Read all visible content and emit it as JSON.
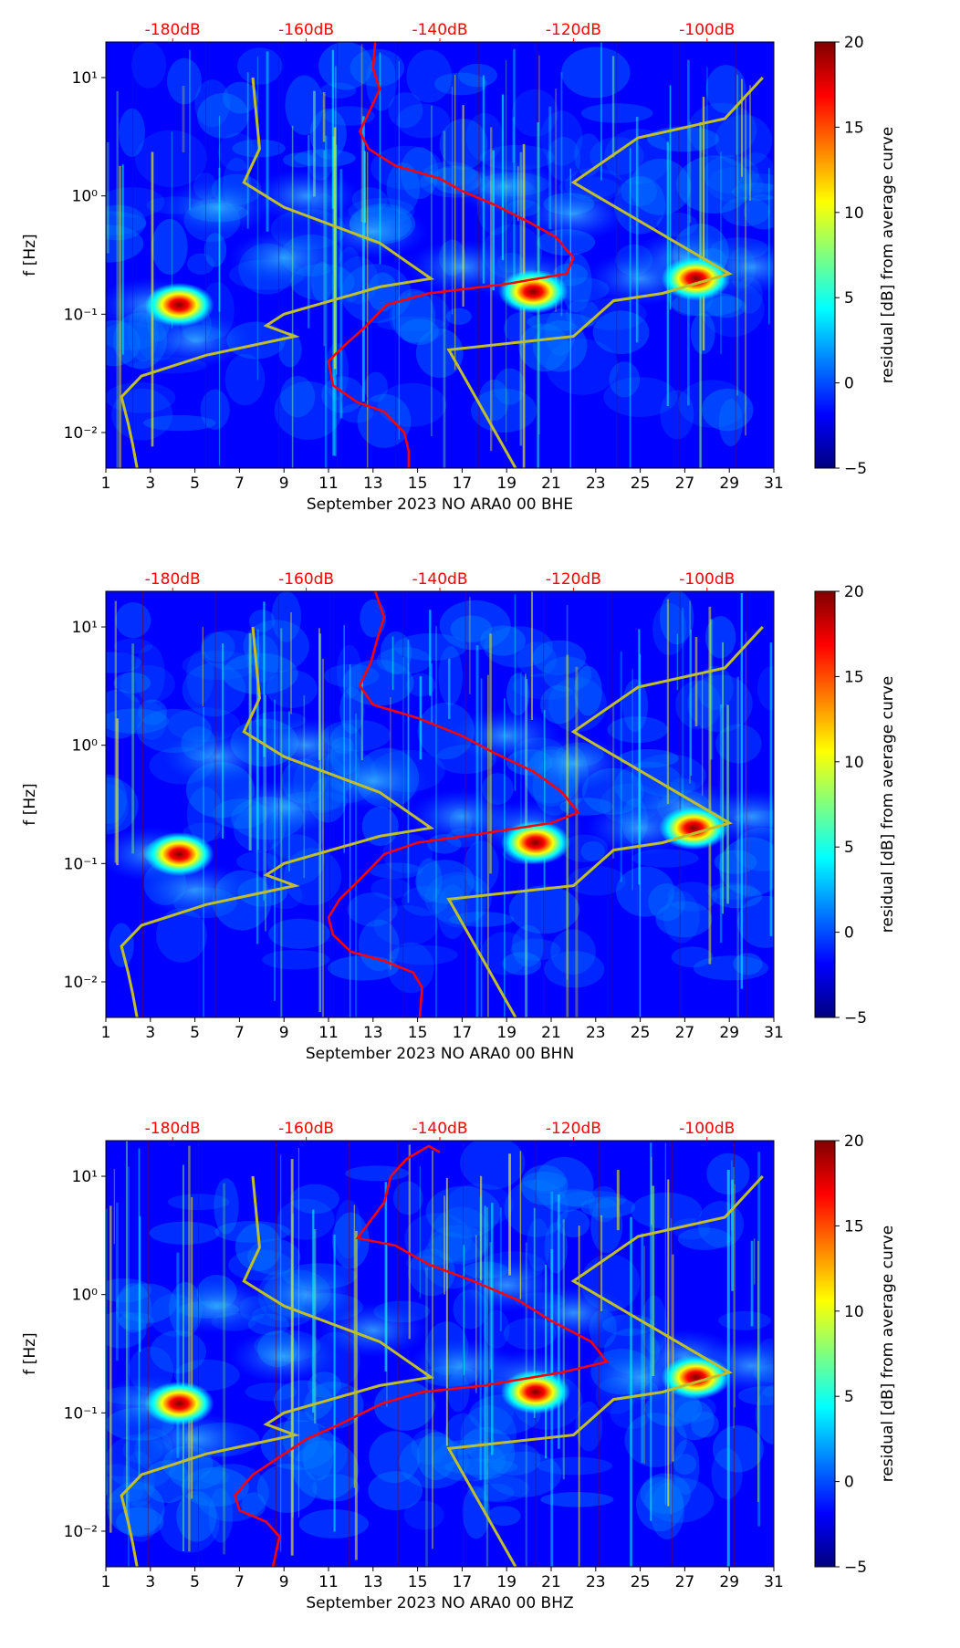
{
  "colormap": [
    "#00007f",
    "#0000ff",
    "#007fff",
    "#00ffff",
    "#7fff7f",
    "#ffff00",
    "#ff7f00",
    "#ff0000",
    "#7f0000"
  ],
  "line_colors": {
    "red": "#ff0000",
    "yellow": "#bfbf2a",
    "top_labels": "#ff0000"
  },
  "chart_data": [
    {
      "type": "heatmap",
      "xlabel": "September 2023 NO ARA0 00 BHE",
      "ylabel": "f [Hz]",
      "x_ticks": [
        "1",
        "3",
        "5",
        "7",
        "9",
        "11",
        "13",
        "15",
        "17",
        "19",
        "21",
        "23",
        "25",
        "27",
        "29",
        "31"
      ],
      "xlim": [
        1,
        31
      ],
      "y_scale": "log",
      "ylim": [
        0.005,
        20
      ],
      "y_ticks": [
        "10⁻²",
        "10⁻¹",
        "10⁰",
        "10¹"
      ],
      "top_ticks": [
        "-180dB",
        "-160dB",
        "-140dB",
        "-120dB",
        "-100dB"
      ],
      "top_tick_x": [
        4,
        10,
        16,
        22,
        28
      ],
      "colorbar": {
        "label": "residual [dB] from average curve",
        "range": [
          -5,
          20
        ],
        "ticks": [
          "−5",
          "0",
          "5",
          "10",
          "15",
          "20"
        ]
      },
      "blobs": [
        [
          4.3,
          0.12,
          20
        ],
        [
          20.2,
          0.155,
          20
        ],
        [
          27.5,
          0.2,
          20
        ]
      ],
      "red_curve": [
        [
          13.1,
          20
        ],
        [
          13.0,
          12
        ],
        [
          13.3,
          8
        ],
        [
          12.8,
          5
        ],
        [
          12.4,
          3.5
        ],
        [
          12.8,
          2.5
        ],
        [
          14,
          1.8
        ],
        [
          16,
          1.4
        ],
        [
          17,
          1.1
        ],
        [
          18.4,
          0.85
        ],
        [
          20,
          0.6
        ],
        [
          21.2,
          0.45
        ],
        [
          22,
          0.3
        ],
        [
          21.7,
          0.22
        ],
        [
          19,
          0.18
        ],
        [
          15.5,
          0.15
        ],
        [
          13.6,
          0.12
        ],
        [
          12.7,
          0.08
        ],
        [
          11.5,
          0.05
        ],
        [
          11,
          0.04
        ],
        [
          11.2,
          0.025
        ],
        [
          12.3,
          0.018
        ],
        [
          13.5,
          0.015
        ],
        [
          14.4,
          0.01
        ],
        [
          14.6,
          0.007
        ],
        [
          14.6,
          0.005
        ]
      ],
      "yellow_curve": [
        [
          2.4,
          0.005
        ],
        [
          2.2,
          0.008
        ],
        [
          2,
          0.012
        ],
        [
          1.7,
          0.02
        ],
        [
          2.6,
          0.03
        ],
        [
          5.5,
          0.045
        ],
        [
          9.5,
          0.065
        ],
        [
          8.2,
          0.08
        ],
        [
          9,
          0.1
        ],
        [
          13.3,
          0.17
        ],
        [
          15.6,
          0.2
        ],
        [
          13.3,
          0.4
        ],
        [
          9,
          0.8
        ],
        [
          7.2,
          1.3
        ],
        [
          7.9,
          2.5
        ],
        [
          7.6,
          10
        ]
      ],
      "yellow_curve_2": [
        [
          19.4,
          0.005
        ],
        [
          16.4,
          0.05
        ],
        [
          22,
          0.065
        ],
        [
          23.8,
          0.13
        ],
        [
          26,
          0.15
        ],
        [
          29,
          0.22
        ],
        [
          22,
          1.3
        ],
        [
          24.9,
          3.1
        ],
        [
          28.8,
          4.5
        ],
        [
          30.5,
          10
        ]
      ]
    },
    {
      "type": "heatmap",
      "xlabel": "September 2023 NO ARA0 00 BHN",
      "ylabel": "f [Hz]",
      "x_ticks": [
        "1",
        "3",
        "5",
        "7",
        "9",
        "11",
        "13",
        "15",
        "17",
        "19",
        "21",
        "23",
        "25",
        "27",
        "29",
        "31"
      ],
      "xlim": [
        1,
        31
      ],
      "y_scale": "log",
      "ylim": [
        0.005,
        20
      ],
      "y_ticks": [
        "10⁻²",
        "10⁻¹",
        "10⁰",
        "10¹"
      ],
      "top_ticks": [
        "-180dB",
        "-160dB",
        "-140dB",
        "-120dB",
        "-100dB"
      ],
      "top_tick_x": [
        4,
        10,
        16,
        22,
        28
      ],
      "colorbar": {
        "label": "residual [dB] from average curve",
        "range": [
          -5,
          20
        ],
        "ticks": [
          "−5",
          "0",
          "5",
          "10",
          "15",
          "20"
        ]
      },
      "blobs": [
        [
          4.3,
          0.12,
          20
        ],
        [
          20.3,
          0.15,
          20
        ],
        [
          27.4,
          0.2,
          20
        ]
      ],
      "red_curve": [
        [
          13.1,
          20
        ],
        [
          13.5,
          12
        ],
        [
          13.2,
          8
        ],
        [
          12.9,
          5
        ],
        [
          12.4,
          3.2
        ],
        [
          13,
          2.2
        ],
        [
          15,
          1.7
        ],
        [
          17,
          1.2
        ],
        [
          18.5,
          0.85
        ],
        [
          20.2,
          0.6
        ],
        [
          21.5,
          0.4
        ],
        [
          22.2,
          0.27
        ],
        [
          21,
          0.22
        ],
        [
          18,
          0.18
        ],
        [
          15,
          0.15
        ],
        [
          13.5,
          0.12
        ],
        [
          12.6,
          0.08
        ],
        [
          11.5,
          0.05
        ],
        [
          11,
          0.035
        ],
        [
          11.2,
          0.025
        ],
        [
          12,
          0.018
        ],
        [
          13.5,
          0.015
        ],
        [
          14.8,
          0.012
        ],
        [
          15.2,
          0.009
        ],
        [
          15.1,
          0.005
        ]
      ],
      "yellow_curve": [
        [
          2.4,
          0.005
        ],
        [
          2.2,
          0.008
        ],
        [
          2,
          0.012
        ],
        [
          1.7,
          0.02
        ],
        [
          2.6,
          0.03
        ],
        [
          5.5,
          0.045
        ],
        [
          9.5,
          0.065
        ],
        [
          8.2,
          0.08
        ],
        [
          9,
          0.1
        ],
        [
          13.3,
          0.17
        ],
        [
          15.6,
          0.2
        ],
        [
          13.3,
          0.4
        ],
        [
          9,
          0.8
        ],
        [
          7.2,
          1.3
        ],
        [
          7.9,
          2.5
        ],
        [
          7.6,
          10
        ]
      ],
      "yellow_curve_2": [
        [
          19.4,
          0.005
        ],
        [
          16.4,
          0.05
        ],
        [
          22,
          0.065
        ],
        [
          23.8,
          0.13
        ],
        [
          26,
          0.15
        ],
        [
          29,
          0.22
        ],
        [
          22,
          1.3
        ],
        [
          24.9,
          3.1
        ],
        [
          28.8,
          4.5
        ],
        [
          30.5,
          10
        ]
      ]
    },
    {
      "type": "heatmap",
      "xlabel": "September 2023 NO ARA0 00 BHZ",
      "ylabel": "f [Hz]",
      "x_ticks": [
        "1",
        "3",
        "5",
        "7",
        "9",
        "11",
        "13",
        "15",
        "17",
        "19",
        "21",
        "23",
        "25",
        "27",
        "29",
        "31"
      ],
      "xlim": [
        1,
        31
      ],
      "y_scale": "log",
      "ylim": [
        0.005,
        20
      ],
      "y_ticks": [
        "10⁻²",
        "10⁻¹",
        "10⁰",
        "10¹"
      ],
      "top_ticks": [
        "-180dB",
        "-160dB",
        "-140dB",
        "-120dB",
        "-100dB"
      ],
      "top_tick_x": [
        4,
        10,
        16,
        22,
        28
      ],
      "colorbar": {
        "label": "residual [dB] from average curve",
        "range": [
          -5,
          20
        ],
        "ticks": [
          "−5",
          "0",
          "5",
          "10",
          "15",
          "20"
        ]
      },
      "blobs": [
        [
          4.3,
          0.12,
          20
        ],
        [
          20.3,
          0.15,
          20
        ],
        [
          27.5,
          0.2,
          20
        ]
      ],
      "red_curve": [
        [
          16,
          16
        ],
        [
          15.5,
          18
        ],
        [
          14.5,
          14
        ],
        [
          13.8,
          10
        ],
        [
          13.5,
          6
        ],
        [
          12.3,
          3
        ],
        [
          14,
          2.6
        ],
        [
          15.5,
          1.8
        ],
        [
          17.5,
          1.3
        ],
        [
          19.5,
          0.9
        ],
        [
          21,
          0.6
        ],
        [
          22.8,
          0.4
        ],
        [
          23.5,
          0.27
        ],
        [
          21.5,
          0.22
        ],
        [
          18,
          0.17
        ],
        [
          15.2,
          0.15
        ],
        [
          13.4,
          0.12
        ],
        [
          11.5,
          0.08
        ],
        [
          10,
          0.06
        ],
        [
          8.6,
          0.04
        ],
        [
          7.6,
          0.03
        ],
        [
          6.8,
          0.02
        ],
        [
          7,
          0.015
        ],
        [
          8.2,
          0.012
        ],
        [
          8.8,
          0.009
        ],
        [
          8.5,
          0.005
        ]
      ],
      "yellow_curve": [
        [
          2.4,
          0.005
        ],
        [
          2.2,
          0.008
        ],
        [
          2,
          0.012
        ],
        [
          1.7,
          0.02
        ],
        [
          2.6,
          0.03
        ],
        [
          5.5,
          0.045
        ],
        [
          9.5,
          0.065
        ],
        [
          8.2,
          0.08
        ],
        [
          9,
          0.1
        ],
        [
          13.3,
          0.17
        ],
        [
          15.6,
          0.2
        ],
        [
          13.3,
          0.4
        ],
        [
          9,
          0.8
        ],
        [
          7.2,
          1.3
        ],
        [
          7.9,
          2.5
        ],
        [
          7.6,
          10
        ]
      ],
      "yellow_curve_2": [
        [
          19.4,
          0.005
        ],
        [
          16.4,
          0.05
        ],
        [
          22,
          0.065
        ],
        [
          23.8,
          0.13
        ],
        [
          26,
          0.15
        ],
        [
          29,
          0.22
        ],
        [
          22,
          1.3
        ],
        [
          24.9,
          3.1
        ],
        [
          28.8,
          4.5
        ],
        [
          30.5,
          10
        ]
      ]
    }
  ]
}
